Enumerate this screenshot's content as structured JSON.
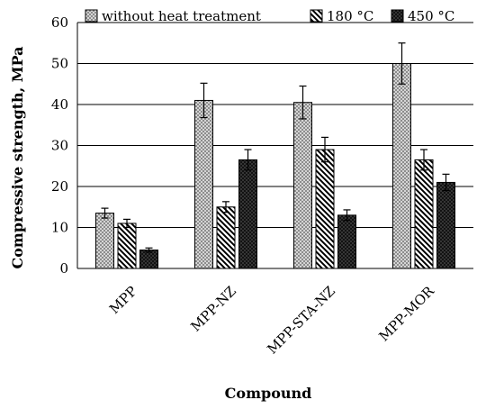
{
  "chart_data": {
    "type": "bar",
    "title": "",
    "xlabel": "Compound",
    "ylabel": "Compressive strength, MPa",
    "ylim": [
      0,
      60
    ],
    "yticks": [
      0,
      10,
      20,
      30,
      40,
      50,
      60
    ],
    "grid": true,
    "legend_position": "top",
    "categories": [
      "MPP",
      "MPP-NZ",
      "MPP-STA-NZ",
      "MPP-MOR"
    ],
    "series": [
      {
        "name": "without heat treatment",
        "pattern": "crosshatch",
        "values": [
          13.5,
          41,
          40.5,
          50
        ],
        "errors": [
          1.2,
          4.2,
          4.0,
          5.0
        ]
      },
      {
        "name": "180 °C",
        "pattern": "diagonal",
        "values": [
          11,
          15,
          29,
          26.5
        ],
        "errors": [
          1.0,
          1.3,
          3.0,
          2.5
        ]
      },
      {
        "name": "450 °C",
        "pattern": "dark-crosshatch",
        "values": [
          4.5,
          26.5,
          13,
          21
        ],
        "errors": [
          0.5,
          2.5,
          1.3,
          2.0
        ]
      }
    ]
  }
}
